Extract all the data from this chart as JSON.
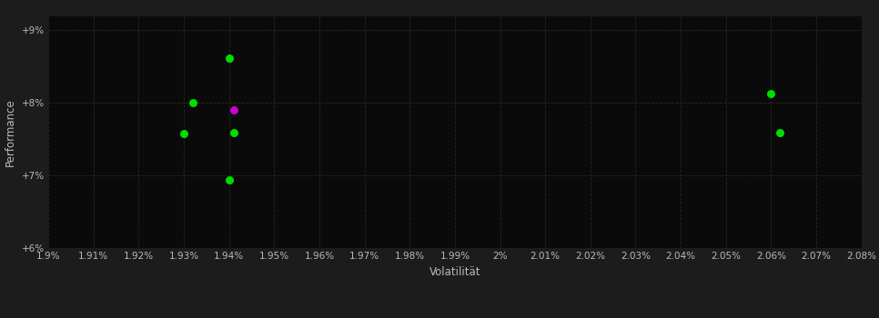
{
  "background_color": "#1c1c1c",
  "plot_bg_color": "#0a0a0a",
  "grid_color": "#1e2e1e",
  "xlabel": "Volatilität",
  "ylabel": "Performance",
  "xlim": [
    0.019,
    0.0208
  ],
  "ylim": [
    0.06,
    0.092
  ],
  "yticks": [
    0.06,
    0.07,
    0.08,
    0.09
  ],
  "ytick_labels": [
    "+6%",
    "+7%",
    "+8%",
    "+9%"
  ],
  "xticks": [
    0.019,
    0.0191,
    0.0192,
    0.0193,
    0.0194,
    0.0195,
    0.0196,
    0.0197,
    0.0198,
    0.0199,
    0.02,
    0.0201,
    0.0202,
    0.0203,
    0.0204,
    0.0205,
    0.0206,
    0.0207,
    0.0208
  ],
  "xtick_labels": [
    "1.9%",
    "1.91%",
    "1.92%",
    "1.93%",
    "1.94%",
    "1.95%",
    "1.96%",
    "1.97%",
    "1.98%",
    "1.99%",
    "2%",
    "2.01%",
    "2.02%",
    "2.03%",
    "2.04%",
    "2.05%",
    "2.06%",
    "2.07%",
    "2.08%"
  ],
  "green_points": [
    [
      0.0194,
      0.0862
    ],
    [
      0.01932,
      0.08005
    ],
    [
      0.0193,
      0.0758
    ],
    [
      0.01941,
      0.0759
    ],
    [
      0.0194,
      0.0694
    ],
    [
      0.0206,
      0.0813
    ],
    [
      0.02062,
      0.0759
    ]
  ],
  "magenta_points": [
    [
      0.01941,
      0.079
    ]
  ],
  "point_size": 30,
  "tick_color": "#bbbbbb",
  "tick_fontsize": 7.5,
  "label_fontsize": 8.5,
  "label_color": "#bbbbbb"
}
